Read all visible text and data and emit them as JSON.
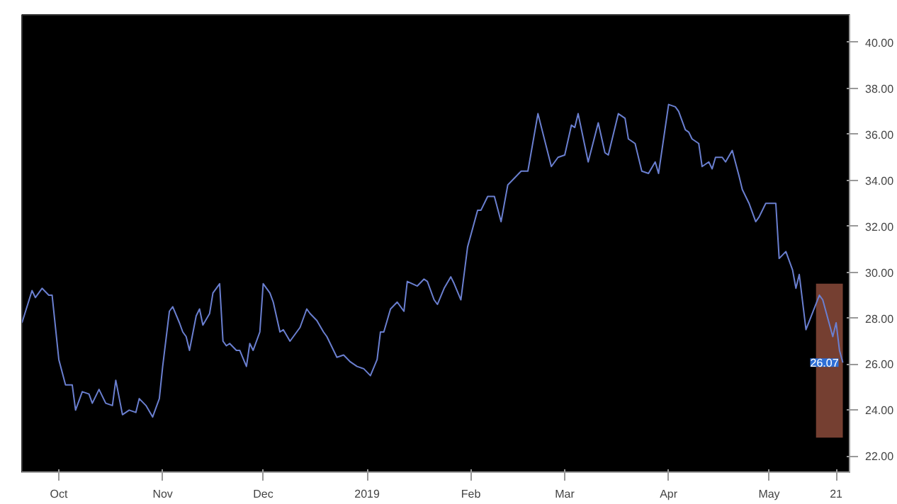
{
  "chart_data": {
    "type": "line",
    "x": [
      "2018-09-20",
      "2018-09-23",
      "2018-09-24",
      "2018-09-26",
      "2018-09-28",
      "2018-09-29",
      "2018-10-01",
      "2018-10-03",
      "2018-10-05",
      "2018-10-06",
      "2018-10-08",
      "2018-10-10",
      "2018-10-11",
      "2018-10-13",
      "2018-10-15",
      "2018-10-17",
      "2018-10-18",
      "2018-10-20",
      "2018-10-22",
      "2018-10-24",
      "2018-10-25",
      "2018-10-27",
      "2018-10-29",
      "2018-10-31",
      "2018-11-01",
      "2018-11-03",
      "2018-11-04",
      "2018-11-06",
      "2018-11-07",
      "2018-11-08",
      "2018-11-09",
      "2018-11-11",
      "2018-11-12",
      "2018-11-13",
      "2018-11-15",
      "2018-11-16",
      "2018-11-18",
      "2018-11-19",
      "2018-11-20",
      "2018-11-21",
      "2018-11-23",
      "2018-11-24",
      "2018-11-26",
      "2018-11-27",
      "2018-11-28",
      "2018-11-30",
      "2018-12-01",
      "2018-12-03",
      "2018-12-04",
      "2018-12-06",
      "2018-12-07",
      "2018-12-09",
      "2018-12-10",
      "2018-12-12",
      "2018-12-14",
      "2018-12-15",
      "2018-12-17",
      "2018-12-19",
      "2018-12-20",
      "2018-12-23",
      "2018-12-25",
      "2018-12-27",
      "2018-12-29",
      "2018-12-31",
      "2019-01-02",
      "2019-01-04",
      "2019-01-05",
      "2019-01-06",
      "2019-01-08",
      "2019-01-10",
      "2019-01-12",
      "2019-01-13",
      "2019-01-16",
      "2019-01-18",
      "2019-01-19",
      "2019-01-21",
      "2019-01-22",
      "2019-01-24",
      "2019-01-26",
      "2019-01-27",
      "2019-01-29",
      "2019-01-31",
      "2019-02-03",
      "2019-02-04",
      "2019-02-06",
      "2019-02-08",
      "2019-02-10",
      "2019-02-12",
      "2019-02-14",
      "2019-02-16",
      "2019-02-18",
      "2019-02-21",
      "2019-02-25",
      "2019-02-27",
      "2019-03-01",
      "2019-03-03",
      "2019-03-04",
      "2019-03-05",
      "2019-03-08",
      "2019-03-11",
      "2019-03-13",
      "2019-03-14",
      "2019-03-17",
      "2019-03-19",
      "2019-03-20",
      "2019-03-22",
      "2019-03-24",
      "2019-03-26",
      "2019-03-28",
      "2019-03-29",
      "2019-04-01",
      "2019-04-03",
      "2019-04-04",
      "2019-04-06",
      "2019-04-07",
      "2019-04-08",
      "2019-04-10",
      "2019-04-11",
      "2019-04-13",
      "2019-04-14",
      "2019-04-15",
      "2019-04-17",
      "2019-04-18",
      "2019-04-20",
      "2019-04-22",
      "2019-04-23",
      "2019-04-25",
      "2019-04-27",
      "2019-04-28",
      "2019-04-30",
      "2019-05-03",
      "2019-05-04",
      "2019-05-06",
      "2019-05-08",
      "2019-05-09",
      "2019-05-10",
      "2019-05-12",
      "2019-05-16",
      "2019-05-17",
      "2019-05-20",
      "2019-05-21",
      "2019-05-22",
      "2019-05-23"
    ],
    "series": [
      {
        "color": "#6a7fd0",
        "values": [
          27.8,
          29.2,
          28.9,
          29.3,
          29.0,
          29.0,
          26.2,
          25.1,
          25.1,
          24.0,
          24.8,
          24.7,
          24.3,
          24.9,
          24.3,
          24.2,
          25.3,
          23.8,
          24.0,
          23.9,
          24.5,
          24.2,
          23.7,
          24.5,
          25.9,
          28.3,
          28.5,
          27.8,
          27.4,
          27.2,
          26.6,
          28.1,
          28.4,
          27.7,
          28.2,
          29.1,
          29.5,
          27.0,
          26.8,
          26.9,
          26.6,
          26.6,
          25.9,
          26.9,
          26.6,
          27.4,
          29.5,
          29.1,
          28.7,
          27.4,
          27.5,
          27.0,
          27.2,
          27.6,
          28.4,
          28.2,
          27.9,
          27.4,
          27.2,
          26.3,
          26.4,
          26.1,
          25.9,
          25.8,
          25.5,
          26.2,
          27.4,
          27.4,
          28.4,
          28.7,
          28.3,
          29.6,
          29.4,
          29.7,
          29.6,
          28.8,
          28.6,
          29.3,
          29.8,
          29.5,
          28.8,
          31.1,
          32.7,
          32.7,
          33.3,
          33.3,
          32.2,
          33.8,
          34.1,
          34.4,
          34.4,
          36.9,
          34.6,
          35.0,
          35.1,
          36.4,
          36.3,
          36.9,
          34.8,
          36.5,
          35.2,
          35.1,
          36.9,
          36.7,
          35.8,
          35.6,
          34.4,
          34.3,
          34.8,
          34.3,
          37.3,
          37.2,
          37.0,
          36.2,
          36.1,
          35.8,
          35.6,
          34.6,
          34.8,
          34.5,
          35.0,
          35.0,
          34.8,
          35.3,
          34.2,
          33.6,
          33.0,
          32.2,
          32.4,
          33.0,
          33.0,
          30.6,
          30.9,
          30.1,
          29.3,
          29.9,
          27.5,
          29.0,
          28.8,
          27.2,
          27.8,
          26.6,
          26.07
        ]
      },
      {
        "type": "bar",
        "x": [
          "2019-05-19"
        ],
        "base": [
          22.8
        ],
        "values": [
          6.7
        ],
        "color": "#8a4a3a"
      }
    ],
    "xlim": [
      "2018-09-20",
      "2019-05-25"
    ],
    "xticks": [
      {
        "value": "2018-10-01",
        "label": "Oct"
      },
      {
        "value": "2018-11-01",
        "label": "Nov"
      },
      {
        "value": "2018-12-01",
        "label": "Dec"
      },
      {
        "value": "2019-01-01",
        "label": "2019"
      },
      {
        "value": "2019-02-01",
        "label": "Feb"
      },
      {
        "value": "2019-03-01",
        "label": "Mar"
      },
      {
        "value": "2019-04-01",
        "label": "Apr"
      },
      {
        "value": "2019-05-01",
        "label": "May"
      },
      {
        "value": "2019-05-21",
        "label": "21"
      }
    ],
    "ylim": [
      21.3,
      41.2
    ],
    "yticks": [
      {
        "value": 22,
        "label": "22.00"
      },
      {
        "value": 24,
        "label": "24.00"
      },
      {
        "value": 26,
        "label": "26.00"
      },
      {
        "value": 28,
        "label": "28.00"
      },
      {
        "value": 30,
        "label": "30.00"
      },
      {
        "value": 32,
        "label": "32.00"
      },
      {
        "value": 34,
        "label": "34.00"
      },
      {
        "value": 36,
        "label": "36.00"
      },
      {
        "value": 38,
        "label": "38.00"
      },
      {
        "value": 40,
        "label": "40.00"
      }
    ],
    "annotations": [
      {
        "text": "26.07",
        "x": "2019-05-23",
        "y": 26.07
      }
    ],
    "grid": false,
    "line_style": "solid",
    "marker": "none"
  }
}
